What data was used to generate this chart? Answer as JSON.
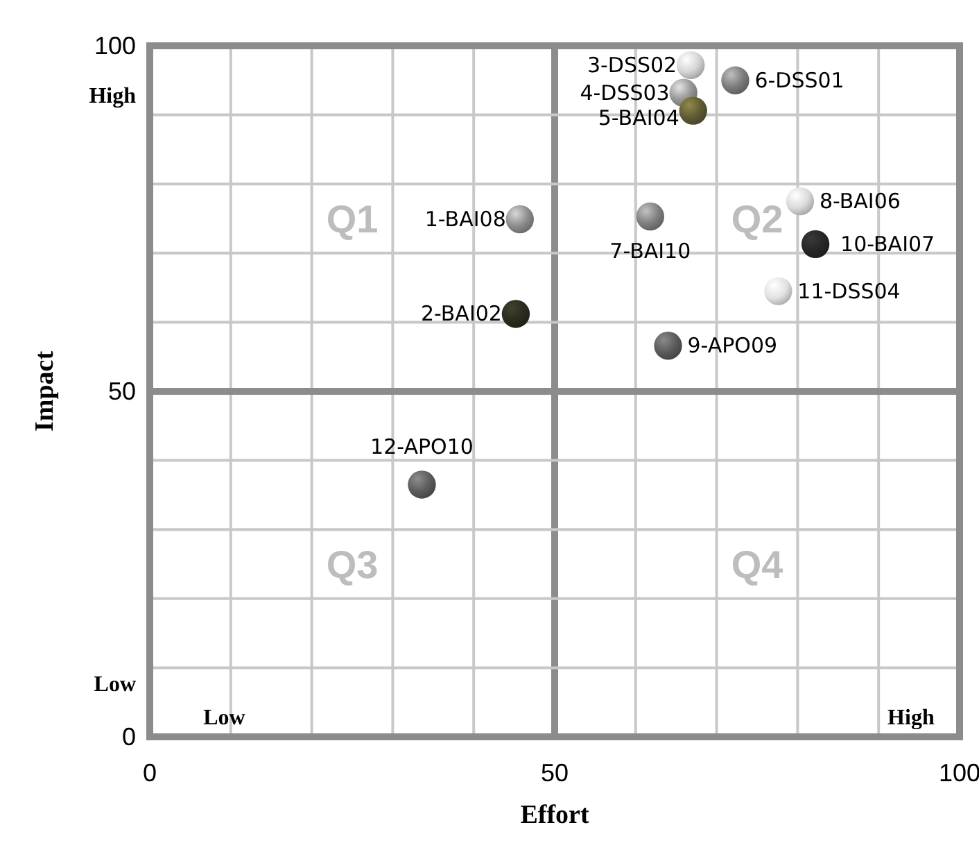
{
  "chart_data": {
    "type": "scatter",
    "xlabel": "Effort",
    "ylabel": "Impact",
    "x": [
      45.7,
      45.2,
      66.8,
      65.9,
      67.1,
      72.3,
      61.8,
      80.3,
      64.0,
      82.2,
      77.6,
      33.6
    ],
    "values": [
      74.9,
      61.2,
      97.2,
      93.2,
      90.6,
      95.0,
      75.3,
      77.5,
      56.6,
      71.3,
      64.5,
      36.5
    ],
    "value_labels": [
      "1-BAI08",
      "2-BAI02",
      "3-DSS02",
      "4-DSS03",
      "5-BAI04",
      "6-DSS01",
      "7-BAI10",
      "8-BAI06",
      "9-APO09",
      "10-BAI07",
      "11-DSS04",
      "12-APO10"
    ],
    "colors": [
      "#8c8c8c",
      "#2b2b1e",
      "#d4d4d4",
      "#959595",
      "#5e5a32",
      "#7c7c7c",
      "#7f7f7f",
      "#dadada",
      "#5a5a5a",
      "#262626",
      "#e2e2e2",
      "#5c5c5c"
    ],
    "xlim": [
      0,
      100
    ],
    "xticks": [
      0,
      {
        "value": 10,
        "label": null
      },
      {
        "value": 20,
        "label": null
      },
      {
        "value": 30,
        "label": null
      },
      {
        "value": 40,
        "label": null
      },
      50,
      {
        "value": 60,
        "label": null
      },
      {
        "value": 70,
        "label": null
      },
      {
        "value": 80,
        "label": null
      },
      {
        "value": 90,
        "label": null
      },
      100
    ],
    "ylim": [
      0,
      100
    ],
    "yticks": [
      0,
      {
        "value": 7.8,
        "label": "Low"
      },
      {
        "value": 10,
        "label": null
      },
      {
        "value": 20,
        "label": null
      },
      {
        "value": 30,
        "label": null
      },
      {
        "value": 40,
        "label": null
      },
      50,
      {
        "value": 60,
        "label": null
      },
      {
        "value": 70,
        "label": null
      },
      {
        "value": 80,
        "label": null
      },
      {
        "value": 90,
        "label": null
      },
      {
        "value": 93,
        "label": "High"
      },
      100
    ],
    "grid": true,
    "marker": "circle",
    "annotations": [
      "Q1",
      "Q2",
      "Q3",
      "Q4",
      "Low",
      "High"
    ]
  }
}
